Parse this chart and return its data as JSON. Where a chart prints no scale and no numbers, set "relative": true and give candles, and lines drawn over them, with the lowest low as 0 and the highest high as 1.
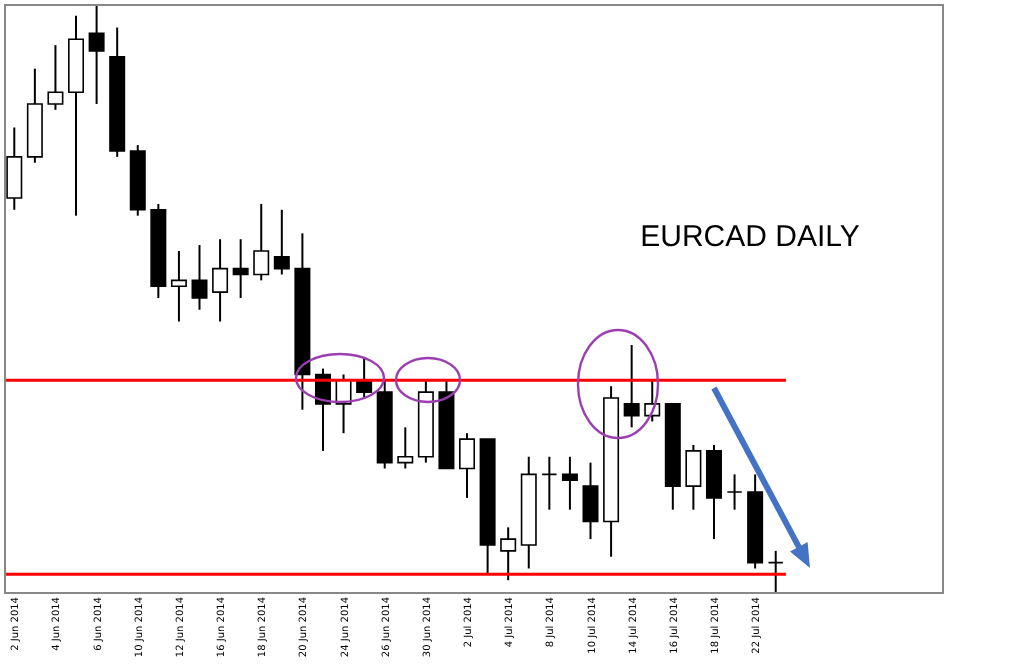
{
  "chart_data": {
    "type": "candlestick",
    "relative": true,
    "categories": [
      "2 Jun 2014",
      null,
      "4 Jun 2014",
      null,
      "6 Jun 2014",
      null,
      "10 Jun 2014",
      null,
      "12 Jun 2014",
      null,
      "16 Jun 2014",
      null,
      "18 Jun 2014",
      null,
      "20 Jun 2014",
      null,
      "24 Jun 2014",
      null,
      "26 Jun 2014",
      null,
      "30 Jun 2014",
      null,
      "2 Jul 2014",
      null,
      "4 Jul 2014",
      null,
      "8 Jul 2014",
      null,
      "10 Jul 2014",
      null,
      "14 Jul 2014",
      null,
      "16 Jul 2014",
      null,
      "18 Jul 2014",
      null,
      "22 Jul 2014",
      null
    ],
    "ohlc": [
      [
        0.67,
        0.79,
        0.65,
        0.74
      ],
      [
        0.74,
        0.89,
        0.73,
        0.83
      ],
      [
        0.83,
        0.93,
        0.82,
        0.85
      ],
      [
        0.85,
        0.98,
        0.64,
        0.94
      ],
      [
        0.95,
        1,
        0.83,
        0.92
      ],
      [
        0.91,
        0.96,
        0.74,
        0.75
      ],
      [
        0.75,
        0.76,
        0.64,
        0.65
      ],
      [
        0.65,
        0.66,
        0.5,
        0.52
      ],
      [
        0.52,
        0.58,
        0.46,
        0.53
      ],
      [
        0.53,
        0.59,
        0.48,
        0.5
      ],
      [
        0.51,
        0.6,
        0.46,
        0.55
      ],
      [
        0.55,
        0.6,
        0.5,
        0.54
      ],
      [
        0.54,
        0.66,
        0.53,
        0.58
      ],
      [
        0.57,
        0.65,
        0.54,
        0.55
      ],
      [
        0.55,
        0.61,
        0.31,
        0.37
      ],
      [
        0.37,
        0.38,
        0.24,
        0.32
      ],
      [
        0.32,
        0.37,
        0.27,
        0.36
      ],
      [
        0.36,
        0.4,
        0.33,
        0.34
      ],
      [
        0.34,
        0.36,
        0.21,
        0.22
      ],
      [
        0.22,
        0.28,
        0.21,
        0.23
      ],
      [
        0.23,
        0.36,
        0.22,
        0.34
      ],
      [
        0.34,
        0.36,
        0.21,
        0.21
      ],
      [
        0.21,
        0.27,
        0.16,
        0.26
      ],
      [
        0.26,
        0.26,
        0.03,
        0.08
      ],
      [
        0.07,
        0.11,
        0.02,
        0.09
      ],
      [
        0.08,
        0.23,
        0.04,
        0.2
      ],
      [
        0.2,
        0.23,
        0.14,
        0.2
      ],
      [
        0.2,
        0.23,
        0.14,
        0.19
      ],
      [
        0.18,
        0.22,
        0.09,
        0.12
      ],
      [
        0.12,
        0.35,
        0.06,
        0.33
      ],
      [
        0.32,
        0.42,
        0.28,
        0.3
      ],
      [
        0.3,
        0.36,
        0.29,
        0.32
      ],
      [
        0.32,
        0.32,
        0.14,
        0.18
      ],
      [
        0.18,
        0.25,
        0.14,
        0.24
      ],
      [
        0.24,
        0.25,
        0.09,
        0.16
      ],
      [
        0.17,
        0.2,
        0.14,
        0.17
      ],
      [
        0.17,
        0.2,
        0.04,
        0.05
      ],
      [
        0.05,
        0.07,
        0,
        0.05
      ]
    ],
    "ref_lines": [
      {
        "axis": "y",
        "value": 0.36,
        "color": "#ff0000"
      },
      {
        "axis": "y",
        "value": 0.03,
        "color": "#ff0000"
      }
    ],
    "annotations": [
      "EURCAD  DAILY"
    ]
  }
}
